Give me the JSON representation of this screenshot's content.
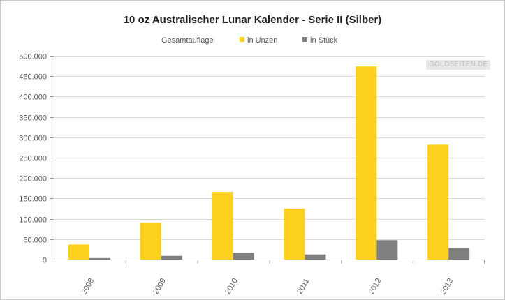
{
  "chart_data": {
    "type": "bar",
    "title": "10 oz Australischer Lunar Kalender - Serie II (Silber)",
    "legend_title": "Gesamtauflage",
    "legend_position": "top",
    "categories": [
      "2008",
      "2009",
      "2010",
      "2011",
      "2012",
      "2013"
    ],
    "series": [
      {
        "name": "in Unzen",
        "color": "#ffd11f",
        "values": [
          37000,
          90000,
          166000,
          125000,
          474000,
          282000
        ]
      },
      {
        "name": "in Stück",
        "color": "#808080",
        "values": [
          3700,
          9000,
          16600,
          12500,
          47400,
          28200
        ]
      }
    ],
    "ylim": [
      0,
      500000
    ],
    "yticks": [
      "0",
      "50.000",
      "100.000",
      "150.000",
      "200.000",
      "250.000",
      "300.000",
      "350.000",
      "400.000",
      "450.000",
      "500.000"
    ],
    "grid": true,
    "xlabel": "",
    "ylabel": ""
  },
  "watermark": "GOLDSEITEN.DE"
}
